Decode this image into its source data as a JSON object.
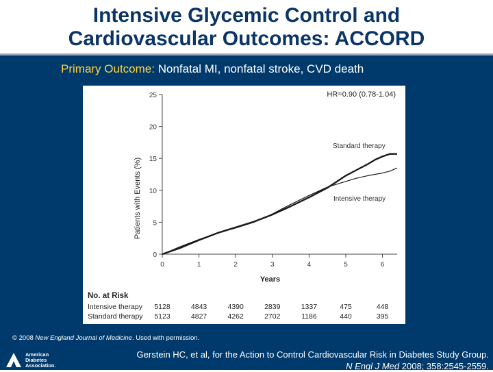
{
  "slide": {
    "title_line1": "Intensive Glycemic Control and",
    "title_line2": "Cardiovascular Outcomes: ACCORD",
    "subtitle_label": "Primary Outcome:",
    "subtitle_text": " Nonfatal MI, nonfatal stroke, CVD death",
    "copyright_symbol": "© 2008 ",
    "copyright_journal": "New England Journal of Medicine",
    "copyright_rest": ". Used with permission.",
    "citation_line1": "Gerstein HC, et al, for the Action to Control Cardiovascular Risk in Diabetes Study Group.",
    "citation_journal": "N Engl J Med",
    "citation_rest": " 2008; 358:2545-2559.",
    "logo_line1": "American",
    "logo_line2": "Diabetes",
    "logo_line3": "Association."
  },
  "colors": {
    "title": "#0a3566",
    "background": "#003a6c",
    "highlight": "#ffd23f",
    "separator": "#9aa8bd"
  },
  "chart_data": {
    "type": "line",
    "ylabel": "Patients with Events (%)",
    "xlabel": "Years",
    "hr_text": "HR=0.90 (0.78-1.04)",
    "x_ticks": [
      0,
      1,
      2,
      3,
      4,
      5,
      6
    ],
    "y_ticks": [
      0,
      5,
      10,
      15,
      20,
      25
    ],
    "xlim": [
      0,
      6.4
    ],
    "ylim": [
      0,
      25
    ],
    "series": [
      {
        "name": "Standard therapy",
        "x": [
          0,
          0.5,
          1.0,
          1.5,
          2.0,
          2.5,
          3.0,
          3.5,
          4.0,
          4.5,
          5.0,
          5.3,
          5.6,
          5.8,
          6.0,
          6.2,
          6.4
        ],
        "y": [
          0,
          1.0,
          2.2,
          3.3,
          4.2,
          5.1,
          6.2,
          7.5,
          8.9,
          10.4,
          12.3,
          13.2,
          14.1,
          14.8,
          15.3,
          15.7,
          15.7
        ],
        "stroke_width": 2.4
      },
      {
        "name": "Intensive therapy",
        "x": [
          0,
          0.5,
          1.0,
          1.5,
          2.0,
          2.5,
          3.0,
          3.5,
          4.0,
          4.5,
          5.0,
          5.3,
          5.6,
          5.8,
          6.0,
          6.2,
          6.4
        ],
        "y": [
          0,
          1.2,
          2.3,
          3.3,
          4.1,
          5.0,
          6.3,
          7.8,
          9.2,
          10.5,
          11.4,
          11.9,
          12.3,
          12.5,
          12.7,
          13.0,
          13.5
        ],
        "stroke_width": 1.2
      }
    ],
    "risk_table": {
      "title": "No. at Risk",
      "rows": [
        {
          "label": "Intensive therapy",
          "values": [
            "5128",
            "4843",
            "4390",
            "2839",
            "1337",
            "475",
            "448"
          ]
        },
        {
          "label": "Standard therapy",
          "values": [
            "5123",
            "4827",
            "4262",
            "2702",
            "1186",
            "440",
            "395"
          ]
        }
      ]
    }
  }
}
